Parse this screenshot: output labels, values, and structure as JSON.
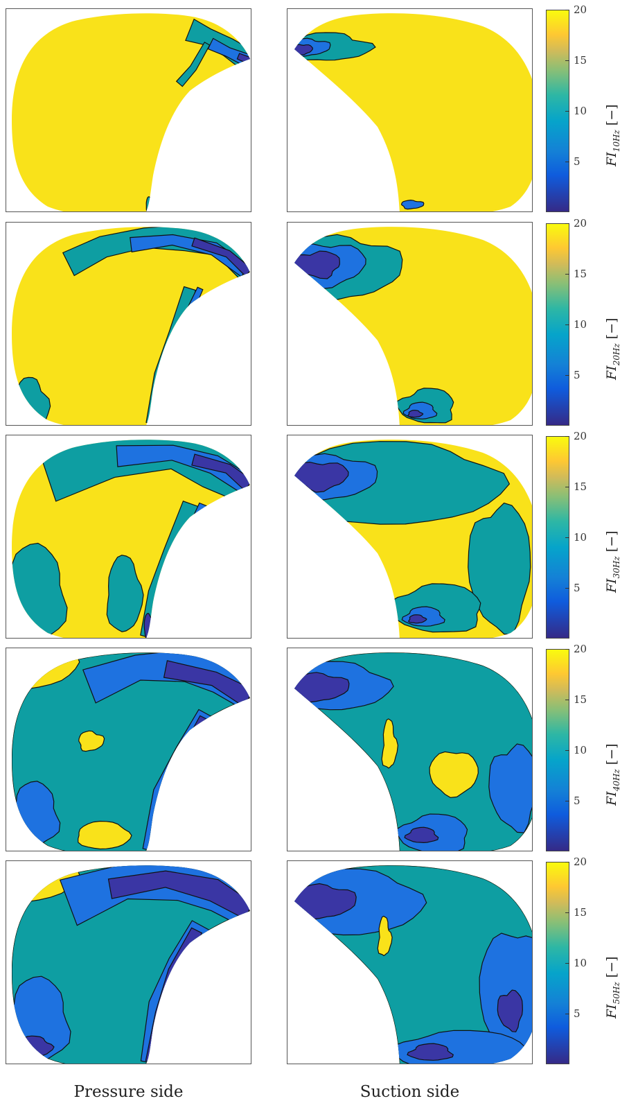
{
  "chart_data": {
    "type": "heatmap",
    "colormap": "parula",
    "levels": [
      5,
      10,
      20
    ],
    "clim": [
      0,
      20
    ],
    "colorbar_ticks": [
      5,
      10,
      15,
      20
    ],
    "column_labels": [
      "Pressure side",
      "Suction side"
    ],
    "rows": [
      {
        "freq": "10Hz",
        "label_main": "FI",
        "label_sub": "10Hz",
        "label_unit": "[−]"
      },
      {
        "freq": "20Hz",
        "label_main": "FI",
        "label_sub": "20Hz",
        "label_unit": "[−]"
      },
      {
        "freq": "30Hz",
        "label_main": "FI",
        "label_sub": "30Hz",
        "label_unit": "[−]"
      },
      {
        "freq": "40Hz",
        "label_main": "FI",
        "label_sub": "40Hz",
        "label_unit": "[−]"
      },
      {
        "freq": "50Hz",
        "label_main": "FI",
        "label_sub": "50Hz",
        "label_unit": "[−]"
      }
    ]
  },
  "colors": {
    "yellow": "#F9E21A",
    "teal": "#0E9EA2",
    "blue": "#1E72E0",
    "purple": "#3A36A4",
    "line": "#111111"
  }
}
